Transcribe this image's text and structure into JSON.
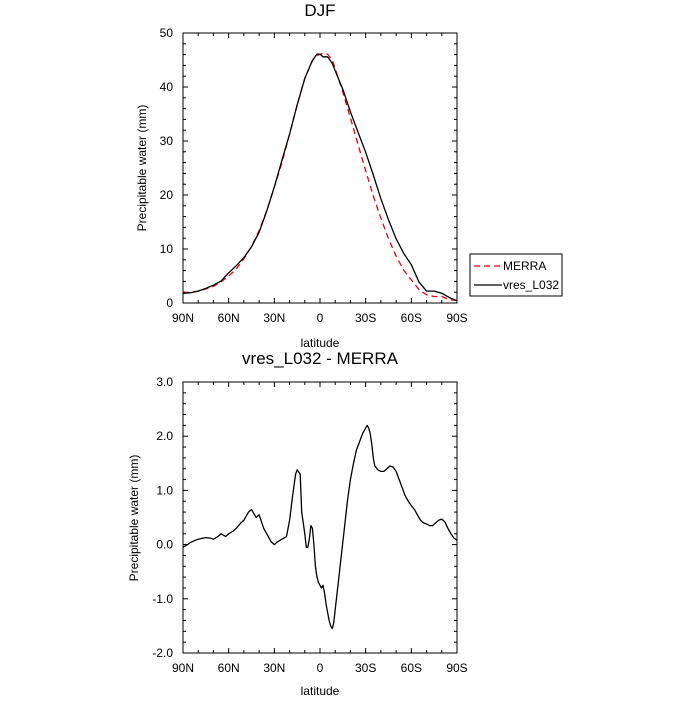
{
  "chart_data": [
    {
      "type": "line",
      "title": "DJF",
      "xlabel": "latitude",
      "ylabel": "Precipitable water (mm)",
      "xlim": [
        90,
        -90
      ],
      "ylim": [
        0,
        50
      ],
      "x_ticks": [
        90,
        60,
        30,
        0,
        -30,
        -60,
        -90
      ],
      "x_tick_labels": [
        "90N",
        "60N",
        "30N",
        "0",
        "30S",
        "60S",
        "90S"
      ],
      "y_ticks": [
        0,
        10,
        20,
        30,
        40,
        50
      ],
      "y_tick_labels": [
        "0",
        "10",
        "20",
        "30",
        "40",
        "50"
      ],
      "legend": "right",
      "series": [
        {
          "name": "MERRA",
          "color": "#e8000b",
          "style": "dashed",
          "x": [
            90,
            85,
            80,
            75,
            70,
            65,
            60,
            55,
            50,
            45,
            40,
            35,
            30,
            25,
            20,
            15,
            10,
            5,
            2,
            0,
            -2,
            -5,
            -8,
            -10,
            -15,
            -20,
            -25,
            -30,
            -35,
            -40,
            -45,
            -50,
            -55,
            -60,
            -65,
            -70,
            -75,
            -80,
            -85,
            -90
          ],
          "y": [
            1.9,
            2.0,
            2.2,
            2.6,
            3.1,
            3.9,
            5.0,
            6.3,
            8.2,
            10.4,
            13.4,
            17.1,
            21.4,
            26.0,
            31.3,
            36.7,
            41.6,
            44.9,
            45.8,
            46.1,
            46.2,
            46.1,
            45.0,
            43.4,
            39.1,
            34.3,
            29.3,
            24.5,
            19.8,
            15.7,
            11.9,
            8.7,
            6.1,
            4.3,
            2.5,
            1.5,
            1.2,
            1.2,
            0.6,
            0.5
          ]
        },
        {
          "name": "vres_L032",
          "color": "#000000",
          "style": "solid",
          "x": [
            90,
            85,
            80,
            75,
            70,
            65,
            60,
            55,
            50,
            45,
            40,
            35,
            30,
            25,
            20,
            15,
            10,
            5,
            2,
            0,
            -2,
            -5,
            -8,
            -10,
            -15,
            -20,
            -25,
            -30,
            -35,
            -40,
            -45,
            -50,
            -55,
            -60,
            -65,
            -70,
            -75,
            -80,
            -85,
            -90
          ],
          "y": [
            1.8,
            1.9,
            2.2,
            2.7,
            3.3,
            4.1,
            5.6,
            6.9,
            8.4,
            10.4,
            13.1,
            17.0,
            21.5,
            26.4,
            31.3,
            36.7,
            41.6,
            44.9,
            46.1,
            46.1,
            45.6,
            45.6,
            44.4,
            43.0,
            39.6,
            35.4,
            31.6,
            27.9,
            23.7,
            19.3,
            15.4,
            11.9,
            9.2,
            7.1,
            3.9,
            2.2,
            2.2,
            1.8,
            1.0,
            0.4
          ]
        }
      ]
    },
    {
      "type": "line",
      "title": "vres_L032 - MERRA",
      "xlabel": "latitude",
      "ylabel": "Precipitable water (mm)",
      "xlim": [
        90,
        -90
      ],
      "ylim": [
        -2.0,
        3.0
      ],
      "x_ticks": [
        90,
        60,
        30,
        0,
        -30,
        -60,
        -90
      ],
      "x_tick_labels": [
        "90N",
        "60N",
        "30N",
        "0",
        "30S",
        "60S",
        "90S"
      ],
      "y_ticks": [
        -2.0,
        -1.0,
        0.0,
        1.0,
        2.0,
        3.0
      ],
      "y_tick_labels": [
        "-2.0",
        "-1.0",
        "0.0",
        "1.0",
        "2.0",
        "3.0"
      ],
      "series": [
        {
          "color": "#000000",
          "style": "solid",
          "x": [
            90,
            87,
            85,
            82,
            80,
            77,
            75,
            72,
            70,
            67,
            65,
            62,
            60,
            57,
            55,
            52,
            50,
            47,
            45,
            42,
            40,
            37,
            35,
            32,
            30,
            28,
            25,
            22,
            20,
            18,
            16,
            15,
            13,
            12,
            10,
            9,
            8,
            7,
            6,
            5,
            4,
            3,
            2,
            1,
            0,
            -1,
            -2,
            -3,
            -4,
            -5,
            -6,
            -7,
            -8,
            -9,
            -10,
            -12,
            -14,
            -16,
            -18,
            -20,
            -22,
            -24,
            -26,
            -28,
            -30,
            -31,
            -32,
            -33,
            -34,
            -35,
            -36,
            -38,
            -40,
            -42,
            -44,
            -46,
            -48,
            -50,
            -52,
            -54,
            -56,
            -58,
            -60,
            -62,
            -64,
            -66,
            -68,
            -70,
            -72,
            -74,
            -76,
            -78,
            -80,
            -82,
            -84,
            -86,
            -88,
            -90
          ],
          "y": [
            -0.05,
            0.0,
            0.04,
            0.08,
            0.1,
            0.12,
            0.13,
            0.12,
            0.1,
            0.15,
            0.2,
            0.15,
            0.2,
            0.25,
            0.3,
            0.4,
            0.45,
            0.6,
            0.65,
            0.5,
            0.55,
            0.3,
            0.2,
            0.05,
            0.0,
            0.05,
            0.1,
            0.15,
            0.45,
            0.9,
            1.3,
            1.38,
            1.3,
            0.6,
            0.2,
            -0.05,
            -0.05,
            0.1,
            0.35,
            0.3,
            0.0,
            -0.4,
            -0.6,
            -0.7,
            -0.75,
            -0.8,
            -0.75,
            -0.9,
            -1.1,
            -1.25,
            -1.4,
            -1.5,
            -1.55,
            -1.45,
            -1.2,
            -0.7,
            -0.2,
            0.3,
            0.8,
            1.2,
            1.5,
            1.75,
            1.9,
            2.05,
            2.15,
            2.2,
            2.15,
            2.05,
            1.85,
            1.6,
            1.45,
            1.38,
            1.35,
            1.35,
            1.4,
            1.45,
            1.43,
            1.35,
            1.2,
            1.05,
            0.9,
            0.8,
            0.72,
            0.65,
            0.55,
            0.45,
            0.4,
            0.38,
            0.35,
            0.35,
            0.4,
            0.45,
            0.47,
            0.42,
            0.3,
            0.2,
            0.12,
            0.08
          ]
        }
      ]
    }
  ]
}
